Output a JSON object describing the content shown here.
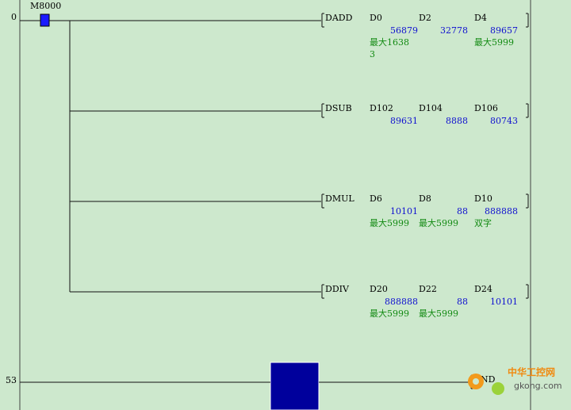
{
  "rungs": [
    {
      "step": "0",
      "contact": "M8000",
      "instructions": [
        {
          "op": "DADD",
          "operands": [
            {
              "name": "D0",
              "value": 56879,
              "comment": [
                "最大1638",
                "3"
              ]
            },
            {
              "name": "D2",
              "value": 32778
            },
            {
              "name": "D4",
              "value": 89657,
              "comment": [
                "最大5999"
              ]
            }
          ]
        },
        {
          "op": "DSUB",
          "operands": [
            {
              "name": "D102",
              "value": 89631
            },
            {
              "name": "D104",
              "value": 8888
            },
            {
              "name": "D106",
              "value": 80743
            }
          ]
        },
        {
          "op": "DMUL",
          "operands": [
            {
              "name": "D6",
              "value": 10101,
              "comment": [
                "最大5999"
              ]
            },
            {
              "name": "D8",
              "value": 88,
              "comment": [
                "最大5999"
              ]
            },
            {
              "name": "D10",
              "value": 888888,
              "comment": [
                "双字"
              ]
            }
          ]
        },
        {
          "op": "DDIV",
          "operands": [
            {
              "name": "D20",
              "value": 888888,
              "comment": [
                "最大5999"
              ]
            },
            {
              "name": "D22",
              "value": 88,
              "comment": [
                "最大5999"
              ]
            },
            {
              "name": "D24",
              "value": 10101
            }
          ]
        }
      ]
    },
    {
      "step": "53",
      "end": "END"
    }
  ],
  "watermark": {
    "title": "中华工控网",
    "site": "gkong.com"
  }
}
